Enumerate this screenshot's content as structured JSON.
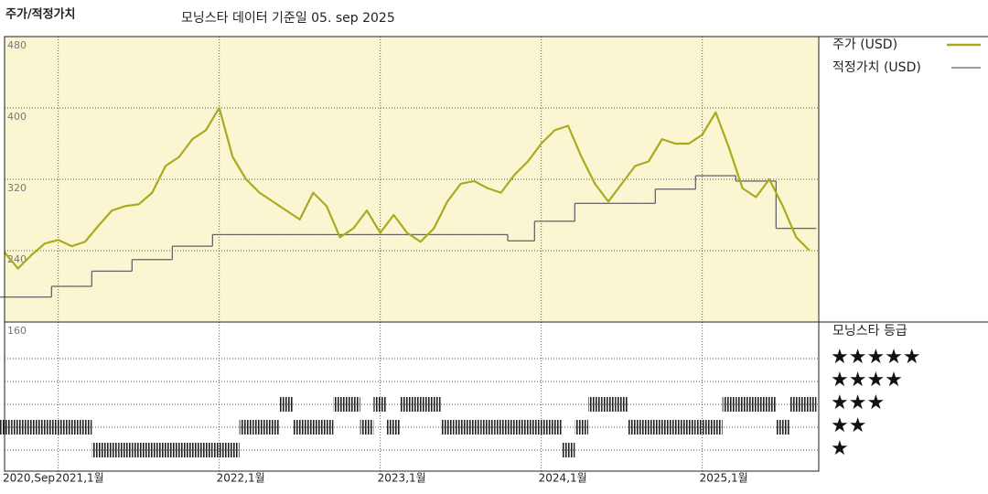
{
  "chart_data": {
    "type": "line",
    "title": "주가/적정가치",
    "subtitle": "모닝스타 데이터 기준일 05. sep 2025",
    "x": [
      "2020-09",
      "2020-10",
      "2020-11",
      "2020-12",
      "2021-01",
      "2021-02",
      "2021-03",
      "2021-04",
      "2021-05",
      "2021-06",
      "2021-07",
      "2021-08",
      "2021-09",
      "2021-10",
      "2021-11",
      "2021-12",
      "2022-01",
      "2022-02",
      "2022-03",
      "2022-04",
      "2022-05",
      "2022-06",
      "2022-07",
      "2022-08",
      "2022-09",
      "2022-10",
      "2022-11",
      "2022-12",
      "2023-01",
      "2023-02",
      "2023-03",
      "2023-04",
      "2023-05",
      "2023-06",
      "2023-07",
      "2023-08",
      "2023-09",
      "2023-10",
      "2023-11",
      "2023-12",
      "2024-01",
      "2024-02",
      "2024-03",
      "2024-04",
      "2024-05",
      "2024-06",
      "2024-07",
      "2024-08",
      "2024-09",
      "2024-10",
      "2024-11",
      "2024-12",
      "2025-01",
      "2025-02",
      "2025-03",
      "2025-04",
      "2025-05",
      "2025-06",
      "2025-07",
      "2025-08",
      "2025-09"
    ],
    "series": [
      {
        "name": "주가 (USD)",
        "color": "#a9ab1f",
        "values": [
          238,
          220,
          235,
          248,
          252,
          245,
          250,
          268,
          285,
          290,
          292,
          305,
          335,
          345,
          365,
          375,
          400,
          345,
          320,
          305,
          295,
          285,
          275,
          305,
          290,
          255,
          265,
          285,
          260,
          280,
          260,
          250,
          265,
          295,
          315,
          318,
          310,
          305,
          325,
          340,
          360,
          375,
          380,
          345,
          315,
          295,
          315,
          335,
          340,
          365,
          360,
          360,
          370,
          395,
          355,
          310,
          300,
          320,
          290,
          255,
          240
        ]
      },
      {
        "name": "적정가치 (USD)",
        "color": "#666666",
        "values": [
          188,
          188,
          188,
          188,
          200,
          200,
          200,
          217,
          217,
          217,
          230,
          230,
          230,
          245,
          245,
          245,
          258,
          258,
          258,
          258,
          258,
          258,
          258,
          258,
          258,
          258,
          258,
          258,
          258,
          258,
          258,
          258,
          258,
          258,
          258,
          258,
          258,
          258,
          251,
          251,
          273,
          273,
          273,
          293,
          293,
          293,
          293,
          293,
          293,
          309,
          309,
          309,
          324,
          324,
          324,
          318,
          318,
          318,
          265,
          265,
          265
        ]
      }
    ],
    "ylim": [
      160,
      480
    ],
    "yticks": [
      160,
      240,
      320,
      400,
      480
    ],
    "xticks": [
      {
        "value": "2020-09",
        "label": "2020,Sep"
      },
      {
        "value": "2021-01",
        "label": "2021,1월"
      },
      {
        "value": "2022-01",
        "label": "2022,1월"
      },
      {
        "value": "2023-01",
        "label": "2023,1월"
      },
      {
        "value": "2024-01",
        "label": "2024,1월"
      },
      {
        "value": "2025-01",
        "label": "2025,1월"
      }
    ],
    "grid": true,
    "rating_title": "모닝스타 등급",
    "rating_levels": [
      {
        "value": 5,
        "label": "★★★★★"
      },
      {
        "value": 4,
        "label": "★★★★"
      },
      {
        "value": 3,
        "label": "★★★"
      },
      {
        "value": 2,
        "label": "★★"
      },
      {
        "value": 1,
        "label": "★"
      }
    ],
    "rating_values": [
      2,
      2,
      2,
      2,
      2,
      2,
      2,
      1,
      1,
      1,
      1,
      1,
      1,
      1,
      1,
      1,
      1,
      1,
      2,
      2,
      2,
      3,
      2,
      2,
      2,
      3,
      3,
      2,
      3,
      2,
      3,
      3,
      3,
      2,
      2,
      2,
      2,
      2,
      2,
      2,
      2,
      2,
      1,
      2,
      3,
      3,
      3,
      2,
      2,
      2,
      2,
      2,
      2,
      2,
      3,
      3,
      3,
      3,
      2,
      3,
      3
    ]
  }
}
